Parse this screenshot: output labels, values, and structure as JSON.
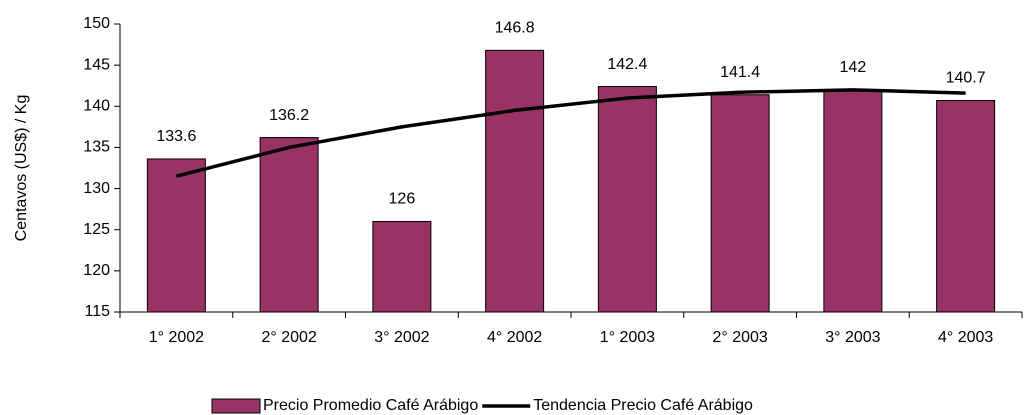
{
  "chart_data": {
    "type": "bar",
    "y_label": "Centavos (US$) / Kg",
    "categories": [
      "1° 2002",
      "2° 2002",
      "3° 2002",
      "4° 2002",
      "1° 2003",
      "2° 2003",
      "3° 2003",
      "4° 2003"
    ],
    "series": [
      {
        "name": "Precio Promedio Café Arábigo",
        "type": "bar",
        "color": "#993366",
        "values": [
          133.6,
          136.2,
          126,
          146.8,
          142.4,
          141.4,
          142,
          140.7
        ]
      },
      {
        "name": "Tendencia Precio Café Arábigo",
        "type": "line",
        "color": "#000000",
        "values": [
          131.5,
          135,
          137.5,
          139.5,
          141,
          141.7,
          142,
          141.6
        ]
      }
    ],
    "ylim": [
      115,
      150
    ],
    "yticks": [
      115,
      120,
      125,
      130,
      135,
      140,
      145,
      150
    ]
  }
}
